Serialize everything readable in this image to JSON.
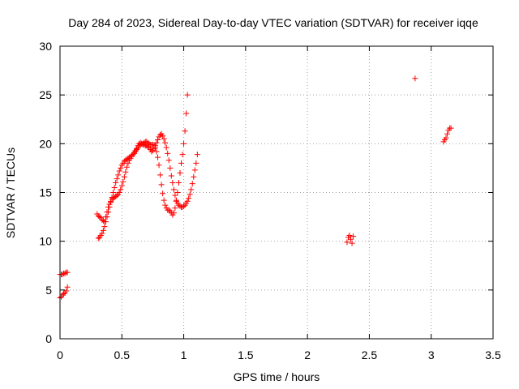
{
  "chart_data": {
    "type": "scatter",
    "title": "Day 284 of 2023, Sidereal Day-to-day VTEC variation (SDTVAR) for receiver iqqe",
    "xlabel": "GPS time / hours",
    "ylabel": "SDTVAR / TECUs",
    "xlim": [
      0,
      3.5
    ],
    "ylim": [
      0,
      30
    ],
    "xticks": [
      0,
      0.5,
      1,
      1.5,
      2,
      2.5,
      3,
      3.5
    ],
    "xtick_labels": [
      "0",
      "0.5",
      "1",
      "1.5",
      "2",
      "2.5",
      "3",
      "3.5"
    ],
    "yticks": [
      0,
      5,
      10,
      15,
      20,
      25,
      30
    ],
    "ytick_labels": [
      "0",
      "5",
      "10",
      "15",
      "20",
      "25",
      "30"
    ],
    "grid": true,
    "marker": "+",
    "color": "#ff0000",
    "series": [
      {
        "name": "SDTVAR",
        "points": [
          [
            0.0,
            6.6
          ],
          [
            0.01,
            6.6
          ],
          [
            0.02,
            6.6
          ],
          [
            0.03,
            6.7
          ],
          [
            0.04,
            6.7
          ],
          [
            0.05,
            6.8
          ],
          [
            0.06,
            6.8
          ],
          [
            0.0,
            4.2
          ],
          [
            0.01,
            4.3
          ],
          [
            0.02,
            4.5
          ],
          [
            0.03,
            4.6
          ],
          [
            0.04,
            4.7
          ],
          [
            0.05,
            4.9
          ],
          [
            0.06,
            5.3
          ],
          [
            0.31,
            10.3
          ],
          [
            0.32,
            10.4
          ],
          [
            0.33,
            10.6
          ],
          [
            0.34,
            10.8
          ],
          [
            0.35,
            11.1
          ],
          [
            0.36,
            11.5
          ],
          [
            0.37,
            12.0
          ],
          [
            0.38,
            12.5
          ],
          [
            0.39,
            13.0
          ],
          [
            0.4,
            13.5
          ],
          [
            0.41,
            14.0
          ],
          [
            0.42,
            14.5
          ],
          [
            0.43,
            15.0
          ],
          [
            0.44,
            15.5
          ],
          [
            0.45,
            16.0
          ],
          [
            0.46,
            16.4
          ],
          [
            0.47,
            16.8
          ],
          [
            0.48,
            17.2
          ],
          [
            0.49,
            17.5
          ],
          [
            0.5,
            17.8
          ],
          [
            0.51,
            18.0
          ],
          [
            0.52,
            18.2
          ],
          [
            0.53,
            18.3
          ],
          [
            0.54,
            18.4
          ],
          [
            0.55,
            18.5
          ],
          [
            0.56,
            18.6
          ],
          [
            0.57,
            18.7
          ],
          [
            0.58,
            18.8
          ],
          [
            0.59,
            18.9
          ],
          [
            0.6,
            19.0
          ],
          [
            0.61,
            19.2
          ],
          [
            0.62,
            19.4
          ],
          [
            0.63,
            19.6
          ],
          [
            0.64,
            19.8
          ],
          [
            0.65,
            19.9
          ],
          [
            0.66,
            20.0
          ],
          [
            0.67,
            20.0
          ],
          [
            0.68,
            19.9
          ],
          [
            0.69,
            19.8
          ],
          [
            0.7,
            19.8
          ],
          [
            0.71,
            19.7
          ],
          [
            0.72,
            19.6
          ],
          [
            0.73,
            19.4
          ],
          [
            0.74,
            19.2
          ],
          [
            0.75,
            19.3
          ],
          [
            0.76,
            19.5
          ],
          [
            0.77,
            19.8
          ],
          [
            0.78,
            20.1
          ],
          [
            0.79,
            20.4
          ],
          [
            0.8,
            20.7
          ],
          [
            0.81,
            20.9
          ],
          [
            0.82,
            21.0
          ],
          [
            0.83,
            20.8
          ],
          [
            0.84,
            20.5
          ],
          [
            0.85,
            20.1
          ],
          [
            0.86,
            19.6
          ],
          [
            0.87,
            19.0
          ],
          [
            0.88,
            18.3
          ],
          [
            0.89,
            17.5
          ],
          [
            0.9,
            16.7
          ],
          [
            0.91,
            16.0
          ],
          [
            0.92,
            15.3
          ],
          [
            0.93,
            14.7
          ],
          [
            0.94,
            14.2
          ],
          [
            0.95,
            13.9
          ],
          [
            0.96,
            13.7
          ],
          [
            0.97,
            13.6
          ],
          [
            0.98,
            13.5
          ],
          [
            0.99,
            13.5
          ],
          [
            1.0,
            13.6
          ],
          [
            1.01,
            13.7
          ],
          [
            1.02,
            13.9
          ],
          [
            1.03,
            14.1
          ],
          [
            1.04,
            14.4
          ],
          [
            1.05,
            14.8
          ],
          [
            1.06,
            15.3
          ],
          [
            1.07,
            15.9
          ],
          [
            1.08,
            16.6
          ],
          [
            1.09,
            17.3
          ],
          [
            1.1,
            18.0
          ],
          [
            1.11,
            18.9
          ],
          [
            0.3,
            12.8
          ],
          [
            0.31,
            12.6
          ],
          [
            0.32,
            12.5
          ],
          [
            0.33,
            12.4
          ],
          [
            0.34,
            12.2
          ],
          [
            0.35,
            12.1
          ],
          [
            0.36,
            12.0
          ],
          [
            0.37,
            12.5
          ],
          [
            0.38,
            13.0
          ],
          [
            0.39,
            13.5
          ],
          [
            0.4,
            13.8
          ],
          [
            0.41,
            14.1
          ],
          [
            0.42,
            14.3
          ],
          [
            0.43,
            14.4
          ],
          [
            0.44,
            14.5
          ],
          [
            0.45,
            14.6
          ],
          [
            0.46,
            14.7
          ],
          [
            0.47,
            14.8
          ],
          [
            0.48,
            15.0
          ],
          [
            0.49,
            15.3
          ],
          [
            0.5,
            15.7
          ],
          [
            0.51,
            16.1
          ],
          [
            0.52,
            16.6
          ],
          [
            0.53,
            17.1
          ],
          [
            0.54,
            17.6
          ],
          [
            0.55,
            18.0
          ],
          [
            0.56,
            18.3
          ],
          [
            0.57,
            18.5
          ],
          [
            0.58,
            18.7
          ],
          [
            0.59,
            18.9
          ],
          [
            0.6,
            19.1
          ],
          [
            0.61,
            19.3
          ],
          [
            0.62,
            19.5
          ],
          [
            0.63,
            19.8
          ],
          [
            0.64,
            20.0
          ],
          [
            0.65,
            20.1
          ],
          [
            0.66,
            20.0
          ],
          [
            0.67,
            19.9
          ],
          [
            0.68,
            20.1
          ],
          [
            0.69,
            20.2
          ],
          [
            0.7,
            20.2
          ],
          [
            0.71,
            20.1
          ],
          [
            0.72,
            20.0
          ],
          [
            0.73,
            19.9
          ],
          [
            0.74,
            19.9
          ],
          [
            0.75,
            19.9
          ],
          [
            0.76,
            19.8
          ],
          [
            0.77,
            19.6
          ],
          [
            0.78,
            19.2
          ],
          [
            0.79,
            18.6
          ],
          [
            0.8,
            17.8
          ],
          [
            0.81,
            16.8
          ],
          [
            0.82,
            15.8
          ],
          [
            0.83,
            14.9
          ],
          [
            0.84,
            14.2
          ],
          [
            0.85,
            13.7
          ],
          [
            0.86,
            13.4
          ],
          [
            0.87,
            13.2
          ],
          [
            0.88,
            13.2
          ],
          [
            0.89,
            13.1
          ],
          [
            0.9,
            12.9
          ],
          [
            0.91,
            12.7
          ],
          [
            0.92,
            12.9
          ],
          [
            0.93,
            13.4
          ],
          [
            0.94,
            14.1
          ],
          [
            0.95,
            15.0
          ],
          [
            0.96,
            16.0
          ],
          [
            0.97,
            17.0
          ],
          [
            0.98,
            18.0
          ],
          [
            0.99,
            18.9
          ],
          [
            1.0,
            20.0
          ],
          [
            1.01,
            21.3
          ],
          [
            1.02,
            23.1
          ],
          [
            1.03,
            25.0
          ],
          [
            2.32,
            9.9
          ],
          [
            2.33,
            10.4
          ],
          [
            2.34,
            10.6
          ],
          [
            2.35,
            10.2
          ],
          [
            2.36,
            9.8
          ],
          [
            2.37,
            10.5
          ],
          [
            2.87,
            26.7
          ],
          [
            3.1,
            20.2
          ],
          [
            3.11,
            20.4
          ],
          [
            3.12,
            20.6
          ],
          [
            3.13,
            21.0
          ],
          [
            3.14,
            21.4
          ],
          [
            3.15,
            21.6
          ],
          [
            3.16,
            21.6
          ]
        ]
      }
    ]
  }
}
